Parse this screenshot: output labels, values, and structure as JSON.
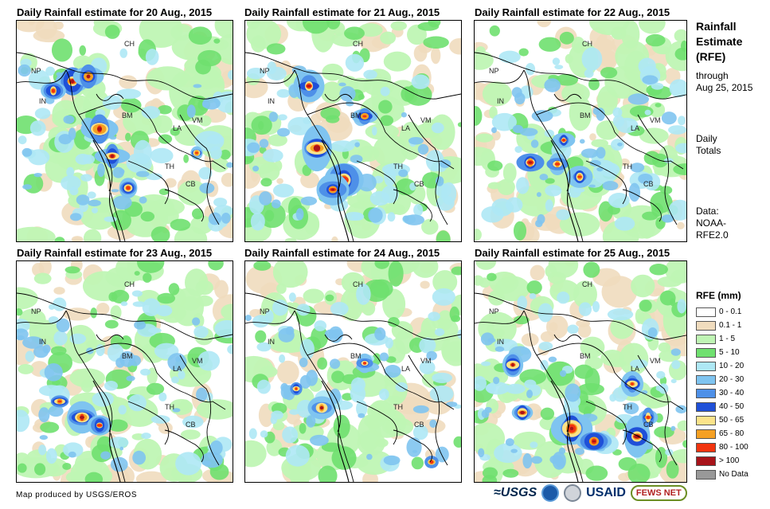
{
  "panels": [
    {
      "title": "Daily Rainfall estimate for 20 Aug., 2015",
      "date": "20 Aug., 2015"
    },
    {
      "title": "Daily Rainfall estimate for 21 Aug., 2015",
      "date": "21 Aug., 2015"
    },
    {
      "title": "Daily Rainfall estimate for 22 Aug., 2015",
      "date": "22 Aug., 2015"
    },
    {
      "title": "Daily Rainfall estimate for 23 Aug., 2015",
      "date": "23 Aug., 2015"
    },
    {
      "title": "Daily Rainfall estimate for 24 Aug., 2015",
      "date": "24 Aug., 2015"
    },
    {
      "title": "Daily Rainfall estimate for 25 Aug., 2015",
      "date": "25 Aug., 2015"
    }
  ],
  "map_labels": {
    "china": "CH",
    "nepal": "NP",
    "india": "IN",
    "burma": "BM",
    "laos": "LA",
    "vietnam": "VM",
    "thailand": "TH",
    "cambodia": "CB"
  },
  "sidebar": {
    "title_line1": "Rainfall",
    "title_line2": "Estimate",
    "title_line3": "(RFE)",
    "through": "through",
    "through_date": "Aug 25, 2015",
    "period_line1": "Daily",
    "period_line2": "Totals",
    "data_line1": "Data:",
    "data_line2": "NOAA-",
    "data_line3": "RFE2.0"
  },
  "legend": {
    "title": "RFE (mm)",
    "items": [
      {
        "label": "0 - 0.1",
        "color": "#ffffff"
      },
      {
        "label": "0.1 - 1",
        "color": "#f0dcbe"
      },
      {
        "label": "1 - 5",
        "color": "#bff5b4"
      },
      {
        "label": "5 - 10",
        "color": "#6fe06f"
      },
      {
        "label": "10 - 20",
        "color": "#aee8f5"
      },
      {
        "label": "20 - 30",
        "color": "#7fc4f0"
      },
      {
        "label": "30 - 40",
        "color": "#4e90e8"
      },
      {
        "label": "40 - 50",
        "color": "#1f50d8"
      },
      {
        "label": "50 - 65",
        "color": "#fbe38a"
      },
      {
        "label": "65 - 80",
        "color": "#f5a023"
      },
      {
        "label": "80 - 100",
        "color": "#f2340f"
      },
      {
        "label": "> 100",
        "color": "#a8141a"
      },
      {
        "label": "No Data",
        "color": "#999999"
      }
    ]
  },
  "credit": "Map produced by USGS/EROS",
  "logos": {
    "usgs": "≈USGS",
    "usaid": "USAID",
    "fewsnet": "FEWS NET"
  }
}
